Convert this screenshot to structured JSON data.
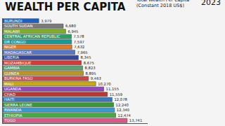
{
  "chart_data": {
    "type": "bar",
    "orientation": "horizontal",
    "title": "WEALTH PER CAPITA",
    "subtitle": [
      "Total Wealth Per Capita",
      "(Constant 2018 US$)"
    ],
    "annotations": [
      "2023"
    ],
    "categories": [
      "BURUNDI",
      "SOUTH SUDAN",
      "MALAWI",
      "CENTRAL AFRICAN REPUBLIC",
      "DR CONGO",
      "NIGER",
      "MADAGASCAR",
      "LIBERIA",
      "MOZAMBIQUE",
      "GAMBIA",
      "GUINEA",
      "BURKINA FASO",
      "MALI",
      "UGANDA",
      "CHAD",
      "HAITI",
      "SIERRA LEONE",
      "RWANDA",
      "ETHIOPIA",
      "TOGO"
    ],
    "values": [
      3979,
      6680,
      6945,
      7578,
      7597,
      7632,
      7965,
      8345,
      8675,
      8823,
      8895,
      9463,
      10270,
      11155,
      11559,
      12078,
      12240,
      12340,
      12474,
      13741
    ],
    "value_labels": [
      "3,979",
      "6,680",
      "6,945",
      "7,578",
      "7,597",
      "7,632",
      "7,965",
      "8,345",
      "8,675",
      "8,823",
      "8,895",
      "9,463",
      "10,270",
      "11,155",
      "11,559",
      "12,078",
      "12,240",
      "12,340",
      "12,474",
      "13,741"
    ],
    "colors": [
      "#1f5fbf",
      "#7a7a7a",
      "#7fae2a",
      "#2e9e62",
      "#1a9a94",
      "#e07a28",
      "#5a78c8",
      "#36489a",
      "#d63a3a",
      "#5f9f6f",
      "#b8962a",
      "#c84848",
      "#c9a818",
      "#9448b8",
      "#b83838",
      "#3a78b8",
      "#3a983a",
      "#3a9ad0",
      "#44aa44",
      "#d85a88"
    ],
    "xlim": [
      0,
      16000
    ],
    "data_labels": true,
    "tick_labels": "y",
    "grid": false
  }
}
